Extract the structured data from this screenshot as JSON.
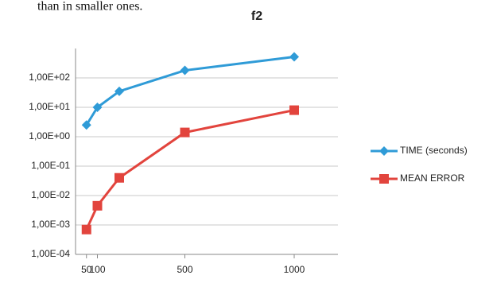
{
  "text_fragment": "than in smaller ones.",
  "chart_data": {
    "type": "line",
    "title": "f2",
    "log_y": true,
    "grid": true,
    "legend": "right",
    "x": [
      50,
      100,
      200,
      500,
      1000
    ],
    "xlim": [
      0,
      1200
    ],
    "xticks": [
      50,
      100,
      500,
      1000
    ],
    "ylim": [
      0.0001,
      1000
    ],
    "yticks": [
      {
        "value": 0.0001,
        "label": "1,00E-04"
      },
      {
        "value": 0.001,
        "label": "1,00E-03"
      },
      {
        "value": 0.01,
        "label": "1,00E-02"
      },
      {
        "value": 0.1,
        "label": "1,00E-01"
      },
      {
        "value": 1,
        "label": "1,00E+00"
      },
      {
        "value": 10,
        "label": "1,00E+01"
      },
      {
        "value": 100,
        "label": "1,00E+02"
      }
    ],
    "series": [
      {
        "name": "TIME (seconds)",
        "color": "#2f9bd7",
        "marker": "diamond",
        "values": [
          2.5,
          10,
          35,
          180,
          520
        ]
      },
      {
        "name": "MEAN ERROR",
        "color": "#e2443d",
        "marker": "square",
        "values": [
          0.0007,
          0.0045,
          0.04,
          1.4,
          8
        ]
      }
    ]
  }
}
